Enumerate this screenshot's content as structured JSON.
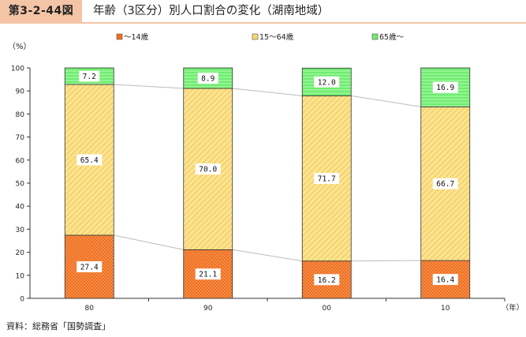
{
  "header": {
    "figure_number": "第3-2-44図",
    "title": "年齢（3区分）別人口割合の変化（湖南地域）"
  },
  "source_note": "資料：総務省「国勢調査」",
  "colors": {
    "age_0_14": "#f07020",
    "age_15_64": "#f8d870",
    "age_65_plus": "#70ec70",
    "connector": "#bbbbbb",
    "axis": "#333333"
  },
  "chart_data": {
    "type": "bar",
    "stacked": true,
    "normalized_percent": true,
    "categories": [
      "80",
      "90",
      "00",
      "10"
    ],
    "series": [
      {
        "name": "～14歳",
        "values": [
          27.4,
          21.1,
          16.2,
          16.4
        ],
        "labels": [
          "27.4",
          "21.1",
          "16.2",
          "16.4"
        ]
      },
      {
        "name": "15～64歳",
        "values": [
          65.4,
          70.0,
          71.7,
          66.7
        ],
        "labels": [
          "65.4",
          "70.0",
          "71.7",
          "66.7"
        ]
      },
      {
        "name": "65歳～",
        "values": [
          7.2,
          8.9,
          12.0,
          16.9
        ],
        "labels": [
          "7.2",
          "8.9",
          "12.0",
          "16.9"
        ]
      }
    ],
    "ylim": [
      0,
      100
    ],
    "yticks": [
      0,
      10,
      20,
      30,
      40,
      50,
      60,
      70,
      80,
      90,
      100
    ],
    "ylabel": "（%）",
    "xlabel": "（年）",
    "legend_position": "top",
    "grid": false
  }
}
